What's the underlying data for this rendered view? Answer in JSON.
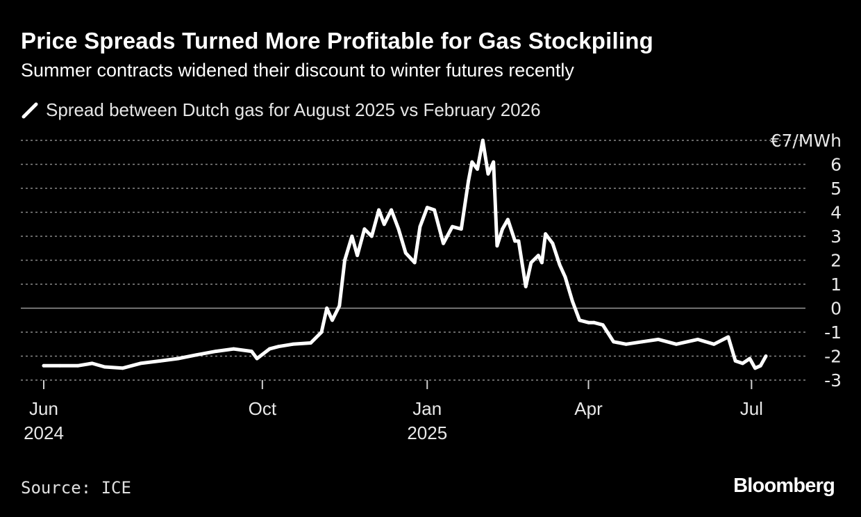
{
  "title": "Price Spreads Turned More Profitable for Gas Stockpiling",
  "subtitle": "Summer contracts widened their discount to winter futures recently",
  "source": "Source: ICE",
  "brand": "Bloomberg",
  "colors": {
    "background": "#000000",
    "line": "#ffffff",
    "grid": "#8a8a8a"
  },
  "chart_data": {
    "type": "line",
    "title": "Price Spreads Turned More Profitable for Gas Stockpiling",
    "subtitle": "Summer contracts widened their discount to winter futures recently",
    "legend_position": "top-left",
    "series": [
      {
        "name": "Spread between Dutch gas for August 2025 vs February 2026",
        "unit": "€/MWh",
        "x": [
          "2024-06-01",
          "2024-06-10",
          "2024-06-20",
          "2024-06-28",
          "2024-07-05",
          "2024-07-15",
          "2024-07-25",
          "2024-08-05",
          "2024-08-15",
          "2024-08-25",
          "2024-09-05",
          "2024-09-15",
          "2024-09-25",
          "2024-09-28",
          "2024-10-05",
          "2024-10-10",
          "2024-10-18",
          "2024-10-28",
          "2024-11-03",
          "2024-11-06",
          "2024-11-09",
          "2024-11-13",
          "2024-11-16",
          "2024-11-20",
          "2024-11-23",
          "2024-11-27",
          "2024-12-01",
          "2024-12-05",
          "2024-12-08",
          "2024-12-12",
          "2024-12-16",
          "2024-12-20",
          "2024-12-25",
          "2024-12-28",
          "2025-01-01",
          "2025-01-05",
          "2025-01-10",
          "2025-01-15",
          "2025-01-20",
          "2025-01-24",
          "2025-01-26",
          "2025-01-29",
          "2025-02-01",
          "2025-02-04",
          "2025-02-07",
          "2025-02-09",
          "2025-02-12",
          "2025-02-15",
          "2025-02-19",
          "2025-02-21",
          "2025-02-25",
          "2025-02-28",
          "2025-03-04",
          "2025-03-06",
          "2025-03-08",
          "2025-03-12",
          "2025-03-16",
          "2025-03-19",
          "2025-03-23",
          "2025-03-27",
          "2025-04-01",
          "2025-04-04",
          "2025-04-09",
          "2025-04-15",
          "2025-04-22",
          "2025-05-01",
          "2025-05-10",
          "2025-05-20",
          "2025-06-01",
          "2025-06-10",
          "2025-06-18",
          "2025-06-22",
          "2025-06-26",
          "2025-06-30",
          "2025-07-03",
          "2025-07-06",
          "2025-07-09"
        ],
        "values": [
          -2.4,
          -2.4,
          -2.4,
          -2.3,
          -2.45,
          -2.5,
          -2.3,
          -2.2,
          -2.1,
          -1.95,
          -1.8,
          -1.7,
          -1.8,
          -2.1,
          -1.7,
          -1.6,
          -1.5,
          -1.45,
          -1.0,
          0.0,
          -0.5,
          0.1,
          2.0,
          3.0,
          2.2,
          3.3,
          3.0,
          4.1,
          3.5,
          4.1,
          3.3,
          2.3,
          1.9,
          3.4,
          4.2,
          4.1,
          2.7,
          3.4,
          3.3,
          5.3,
          6.1,
          5.8,
          7.0,
          5.6,
          6.1,
          2.6,
          3.3,
          3.7,
          2.8,
          2.8,
          0.9,
          1.9,
          2.2,
          1.9,
          3.1,
          2.7,
          1.8,
          1.3,
          0.3,
          -0.5,
          -0.6,
          -0.6,
          -0.7,
          -1.4,
          -1.5,
          -1.4,
          -1.3,
          -1.5,
          -1.3,
          -1.5,
          -1.2,
          -2.2,
          -2.3,
          -2.1,
          -2.5,
          -2.4,
          -2.0
        ]
      }
    ],
    "x_ticks": [
      {
        "date": "2024-06-01",
        "label": "Jun",
        "year": "2024"
      },
      {
        "date": "2024-10-01",
        "label": "Oct",
        "year": ""
      },
      {
        "date": "2025-01-01",
        "label": "Jan",
        "year": "2025"
      },
      {
        "date": "2025-04-01",
        "label": "Apr",
        "year": ""
      },
      {
        "date": "2025-07-01",
        "label": "Jul",
        "year": ""
      }
    ],
    "x_range": [
      "2024-06-01",
      "2025-07-09"
    ],
    "ylim": [
      -3,
      7
    ],
    "y_ticks": [
      {
        "value": 7,
        "label": "€7/MWh"
      },
      {
        "value": 6,
        "label": "6"
      },
      {
        "value": 5,
        "label": "5"
      },
      {
        "value": 4,
        "label": "4"
      },
      {
        "value": 3,
        "label": "3"
      },
      {
        "value": 2,
        "label": "2"
      },
      {
        "value": 1,
        "label": "1"
      },
      {
        "value": 0,
        "label": "0"
      },
      {
        "value": -1,
        "label": "-1"
      },
      {
        "value": -2,
        "label": "-2"
      },
      {
        "value": -3,
        "label": "-3"
      }
    ],
    "grid": true,
    "xlabel": "",
    "ylabel": "€/MWh"
  }
}
